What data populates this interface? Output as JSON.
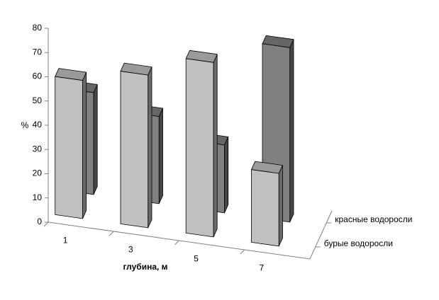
{
  "chart_data": {
    "type": "bar3d",
    "x_label": "глубина, м",
    "y_label": "%",
    "categories": [
      "1",
      "3",
      "5",
      "7"
    ],
    "series": [
      {
        "name": "бурые водоросли",
        "color": "#c0c0c0",
        "values": [
          57,
          63,
          72,
          30
        ]
      },
      {
        "name": "красные водоросли",
        "color": "#808080",
        "values": [
          42,
          36,
          28,
          72
        ]
      }
    ],
    "ylim": [
      0,
      80
    ],
    "yticks": [
      0,
      10,
      20,
      30,
      40,
      50,
      60,
      70,
      80
    ]
  }
}
